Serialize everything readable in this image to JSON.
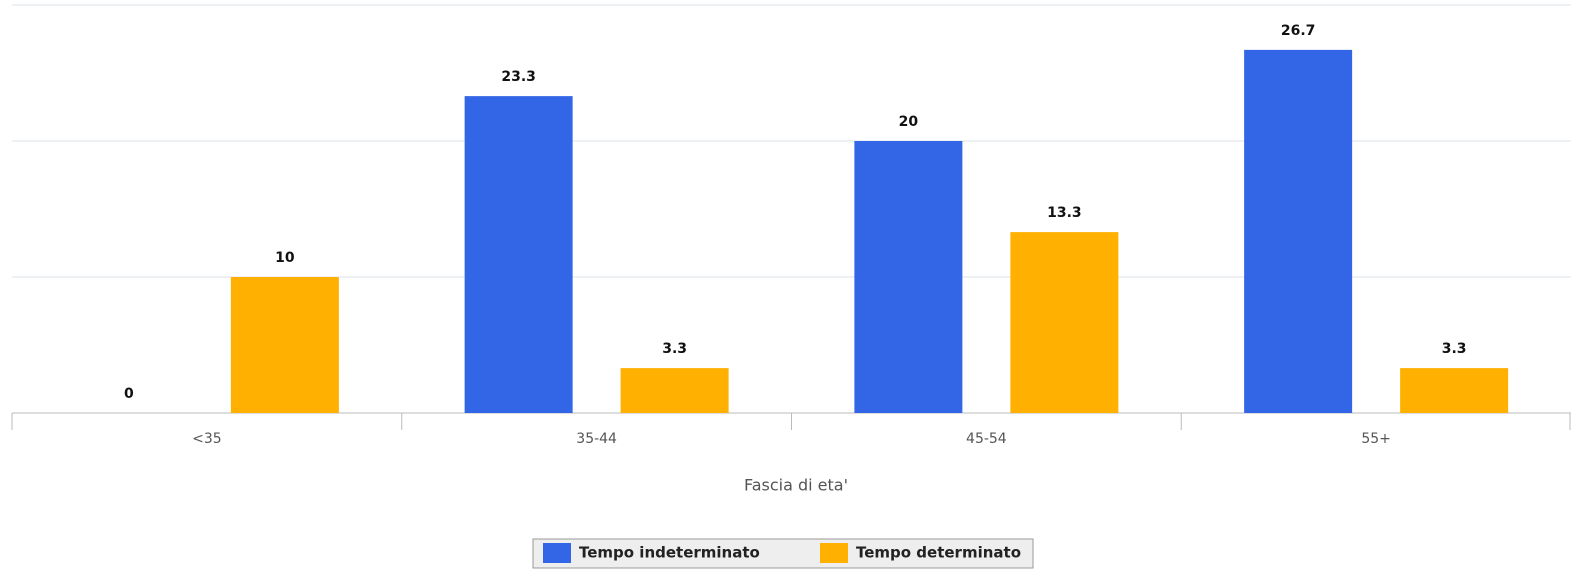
{
  "chart_data": {
    "type": "bar",
    "x_label": "Fascia di eta'",
    "categories": [
      "<35",
      "35-44",
      "45-54",
      "55+"
    ],
    "series": [
      {
        "name": "Tempo indeterminato",
        "color": "#3366e6",
        "values": [
          0,
          23.3,
          20,
          26.7
        ]
      },
      {
        "name": "Tempo determinato",
        "color": "#ffb000",
        "values": [
          10,
          3.3,
          13.3,
          3.3
        ]
      }
    ],
    "ylim": [
      0,
      30
    ],
    "yticks": [
      0,
      10,
      20,
      30
    ],
    "grid": true,
    "legend": "bottom"
  }
}
